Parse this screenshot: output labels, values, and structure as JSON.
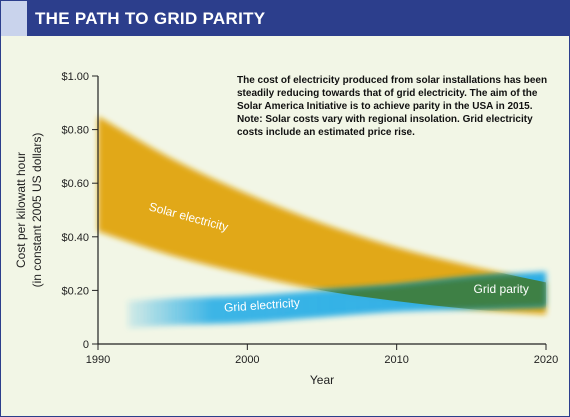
{
  "header": {
    "title": "THE PATH TO GRID PARITY"
  },
  "note": "The cost of electricity produced from solar installations has been steadily reducing towards that of grid electricity. The aim of the Solar America Initiative is to achieve parity in the USA in 2015. Note: Solar costs vary with regional insolation. Grid electricity costs include an estimated price rise.",
  "colors": {
    "header": "#2c3e8c",
    "background": "#f2f6e6",
    "solar": "#e1a40a",
    "grid": "#2aaee6",
    "parity": "#3f7e3c"
  },
  "chart_data": {
    "type": "area",
    "xlabel": "Year",
    "ylabel_line1": "Cost per kilowatt hour",
    "ylabel_line2": "(in constant 2005 US dollars)",
    "xlim": [
      1990,
      2020
    ],
    "ylim": [
      0,
      1.0
    ],
    "x_ticks": [
      1990,
      2000,
      2010,
      2020
    ],
    "y_ticks": [
      0,
      0.2,
      0.4,
      0.6,
      0.8,
      1.0
    ],
    "y_tick_labels": [
      "0",
      "$0.20",
      "$0.40",
      "$0.60",
      "$0.80",
      "$1.00"
    ],
    "series": [
      {
        "name": "Solar electricity",
        "x": [
          1990,
          1995,
          2000,
          2005,
          2010,
          2015,
          2020
        ],
        "upper": [
          0.85,
          0.69,
          0.56,
          0.45,
          0.36,
          0.29,
          0.23
        ],
        "lower": [
          0.42,
          0.33,
          0.26,
          0.2,
          0.16,
          0.13,
          0.11
        ]
      },
      {
        "name": "Grid electricity",
        "x": [
          1992,
          1995,
          2000,
          2005,
          2010,
          2015,
          2020
        ],
        "upper": [
          0.16,
          0.17,
          0.18,
          0.2,
          0.22,
          0.25,
          0.27
        ],
        "lower": [
          0.06,
          0.07,
          0.08,
          0.1,
          0.12,
          0.13,
          0.14
        ]
      }
    ],
    "annotations": [
      {
        "text": "Solar electricity",
        "x": 1996,
        "y": 0.46
      },
      {
        "text": "Grid electricity",
        "x": 2001,
        "y": 0.13
      },
      {
        "text": "Grid parity",
        "x": 2017,
        "y": 0.19
      }
    ]
  }
}
